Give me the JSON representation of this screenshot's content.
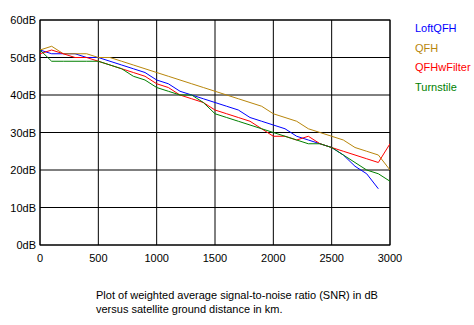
{
  "chart_data": {
    "type": "line",
    "annotations": [
      "Plot of weighted average signal-to-noise ratio (SNR) in dB",
      "versus satellite ground distance in km."
    ],
    "x": [
      0,
      100,
      200,
      300,
      400,
      500,
      600,
      700,
      800,
      900,
      1000,
      1100,
      1200,
      1300,
      1400,
      1500,
      1600,
      1700,
      1800,
      1900,
      2000,
      2100,
      2200,
      2300,
      2400,
      2500,
      2600,
      2700,
      2800,
      2900,
      3000
    ],
    "series": [
      {
        "name": "LoftQFH",
        "color": "#0000ff",
        "values": [
          52,
          51,
          51,
          51,
          50,
          50,
          49,
          48,
          47,
          46,
          44,
          43,
          41,
          40,
          39,
          38,
          37,
          36,
          34,
          33,
          32,
          31,
          29,
          28,
          27,
          26,
          24,
          21,
          19,
          15,
          null
        ]
      },
      {
        "name": "QFH",
        "color": "#b8860b",
        "values": [
          52,
          53,
          51,
          51,
          51,
          50,
          50,
          49,
          48,
          47,
          46,
          45,
          44,
          43,
          42,
          41,
          40,
          39,
          38,
          37,
          35,
          34,
          33,
          31,
          30,
          29,
          28,
          26,
          25,
          24,
          20
        ]
      },
      {
        "name": "QFHwFilter",
        "color": "#ff0000",
        "values": [
          51,
          52,
          51,
          50,
          50,
          49,
          48,
          47,
          46,
          45,
          43,
          42,
          40,
          39,
          38,
          36,
          35,
          34,
          33,
          31,
          29,
          29,
          28,
          29,
          27,
          26,
          25,
          24,
          23,
          22,
          27
        ]
      },
      {
        "name": "Turnstile",
        "color": "#008000",
        "values": [
          52,
          49,
          49,
          49,
          49,
          49,
          48,
          47,
          45,
          44,
          42,
          41,
          40,
          40,
          38,
          35,
          34,
          33,
          32,
          31,
          30,
          29,
          28,
          27,
          27,
          26,
          24,
          22,
          20,
          19,
          17
        ]
      }
    ],
    "xlim": [
      0,
      3000
    ],
    "xticks": [
      0,
      500,
      1000,
      1500,
      2000,
      2500,
      3000
    ],
    "ylim": [
      0,
      60
    ],
    "yticks": [
      {
        "value": 0,
        "label": "0dB"
      },
      {
        "value": 10,
        "label": "10dB"
      },
      {
        "value": 20,
        "label": "20dB"
      },
      {
        "value": 30,
        "label": "30dB"
      },
      {
        "value": 40,
        "label": "40dB"
      },
      {
        "value": 50,
        "label": "50dB"
      },
      {
        "value": 60,
        "label": "60dB"
      }
    ],
    "grid": true,
    "legend": "right"
  }
}
